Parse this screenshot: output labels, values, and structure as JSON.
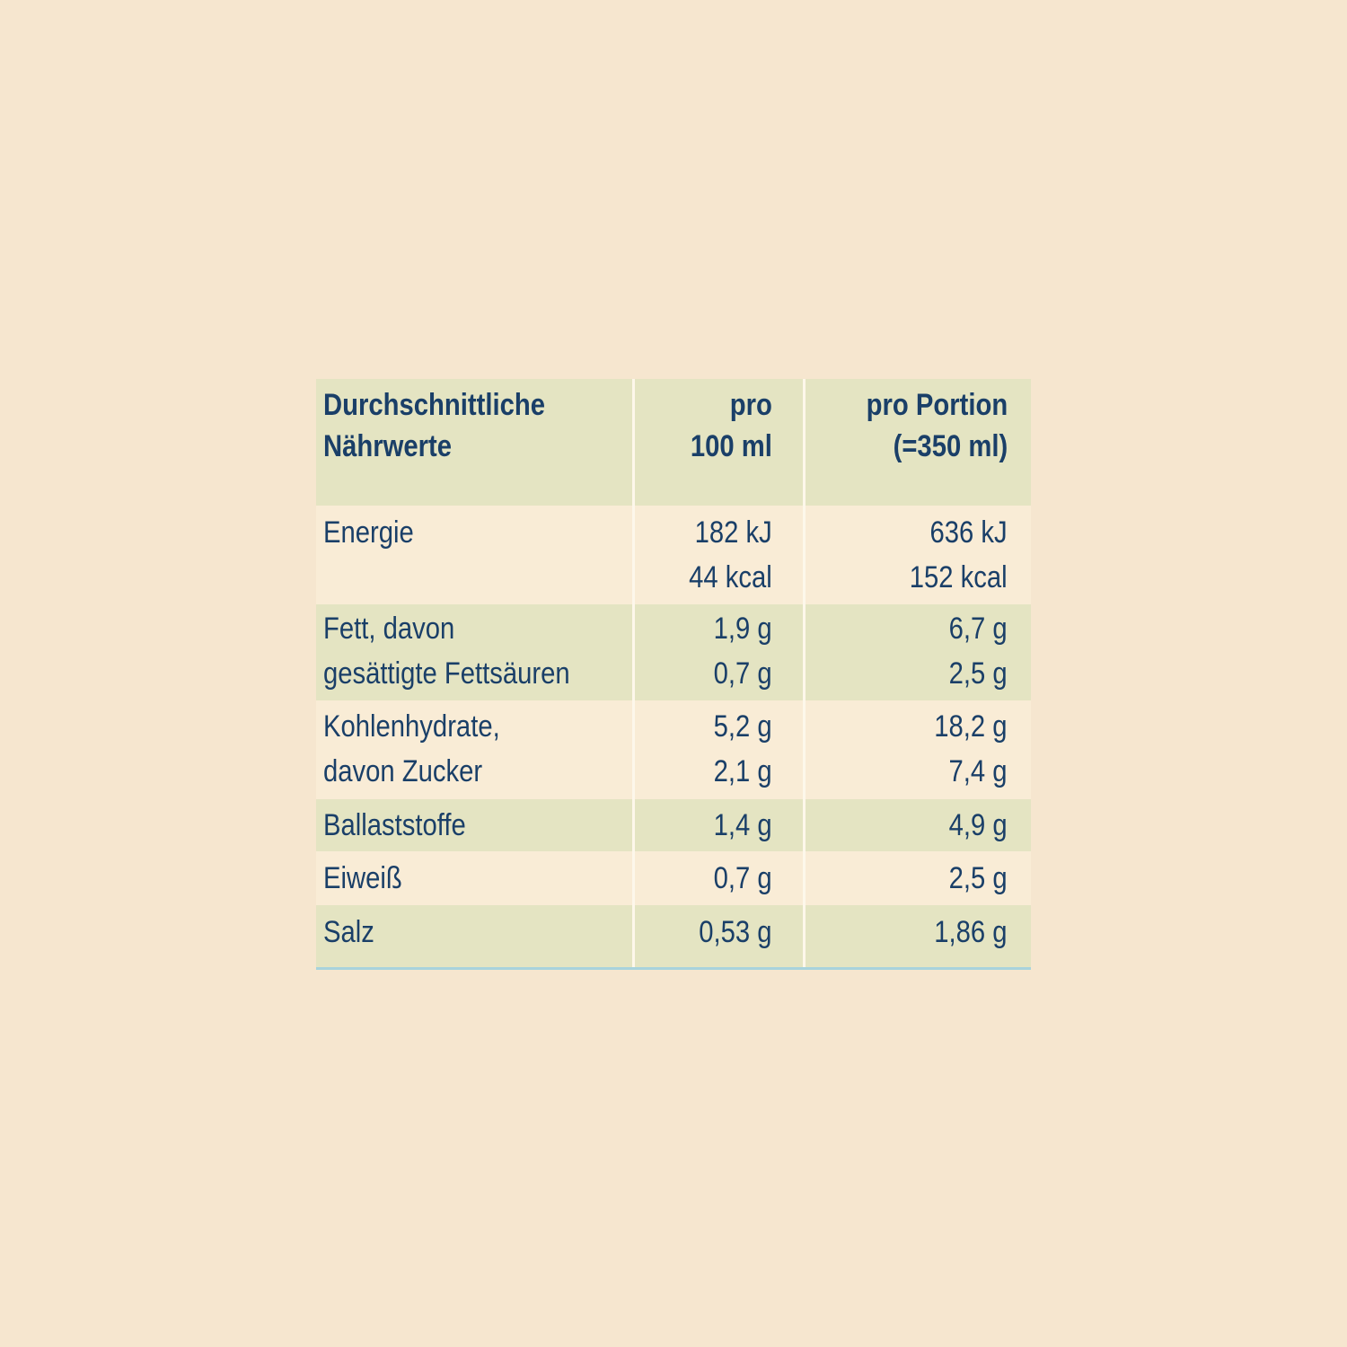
{
  "table": {
    "header": {
      "col0": [
        "Durchschnittliche",
        "Nährwerte"
      ],
      "col1": [
        "pro",
        "100 ml"
      ],
      "col2": [
        "pro Portion",
        "(=350 ml)"
      ]
    },
    "rows": [
      {
        "label": [
          "Energie",
          ""
        ],
        "per100": [
          "182 kJ",
          "44 kcal"
        ],
        "portion": [
          "636 kJ",
          "152 kcal"
        ]
      },
      {
        "label": [
          "Fett, davon",
          "gesättigte Fettsäuren"
        ],
        "per100": [
          "1,9 g",
          "0,7 g"
        ],
        "portion": [
          "6,7 g",
          "2,5 g"
        ]
      },
      {
        "label": [
          "Kohlenhydrate,",
          "davon Zucker"
        ],
        "per100": [
          "5,2 g",
          "2,1 g"
        ],
        "portion": [
          "18,2 g",
          "7,4 g"
        ]
      },
      {
        "label": [
          "Ballaststoffe"
        ],
        "per100": [
          "1,4 g"
        ],
        "portion": [
          "4,9 g"
        ]
      },
      {
        "label": [
          "Eiweiß"
        ],
        "per100": [
          "0,7 g"
        ],
        "portion": [
          "2,5 g"
        ]
      },
      {
        "label": [
          "Salz"
        ],
        "per100": [
          "0,53 g"
        ],
        "portion": [
          "1,86 g"
        ]
      }
    ]
  },
  "colors": {
    "background": "#f6e6cf",
    "text": "#1a3f68",
    "shaded_row": "#e4e4c2",
    "light_row": "#f9ecd6"
  }
}
